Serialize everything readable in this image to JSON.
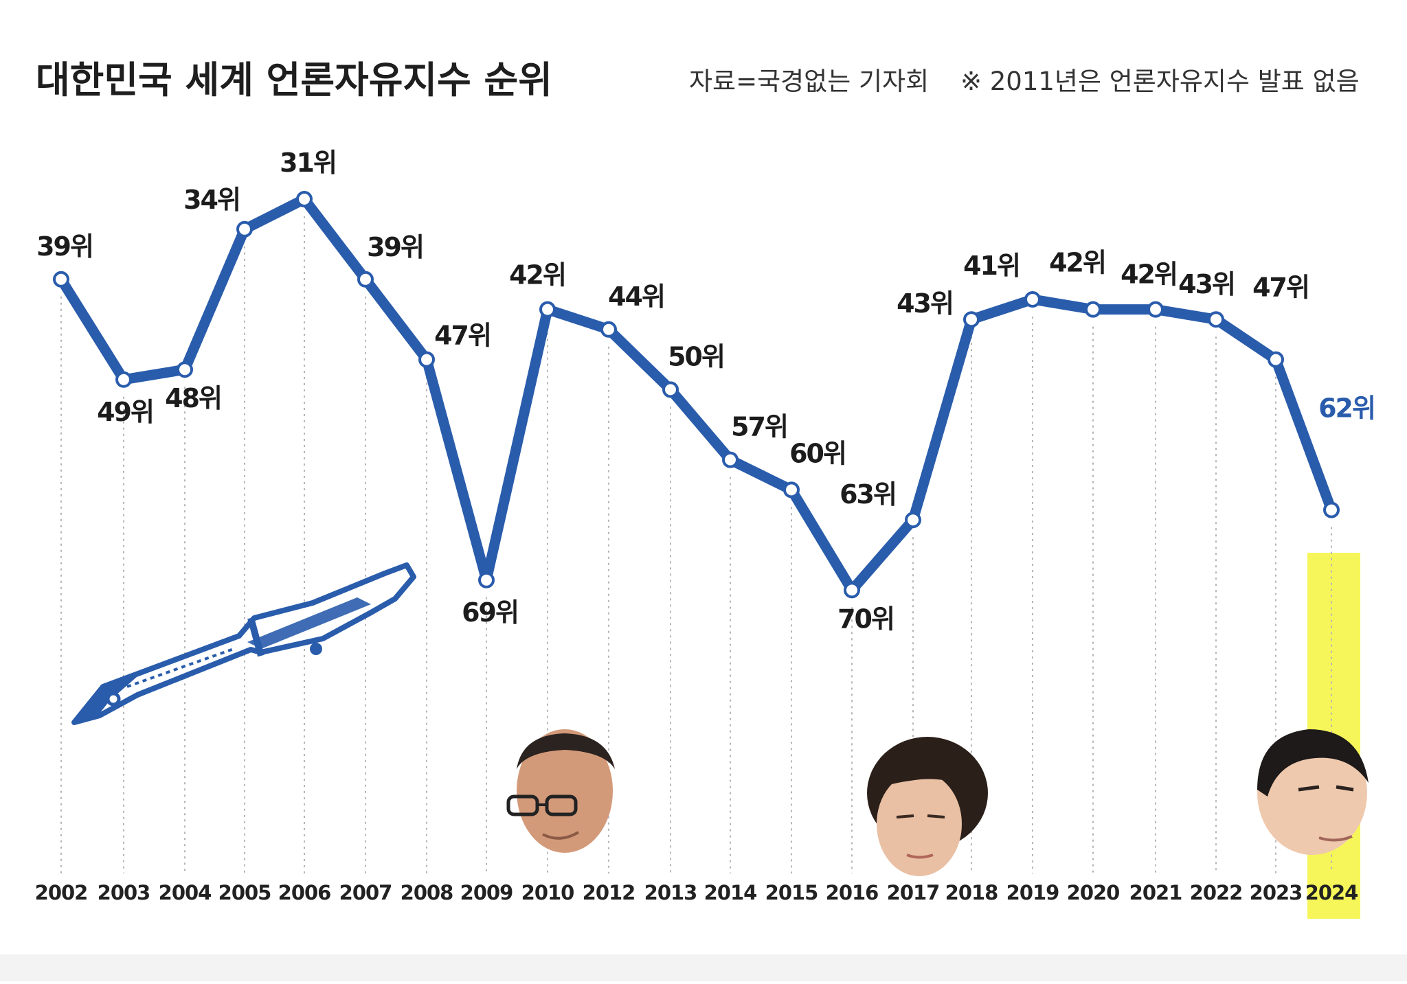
{
  "title": "대한민국 세계 언론자유지수 순위",
  "source_note": "자료=국경없는 기자회",
  "footnote": "※ 2011년은 언론자유지수 발표 없음",
  "colors": {
    "line": "#2a5cac",
    "point_fill": "#ffffff",
    "highlight_band": "#f6f65a",
    "highlight_label": "#2a5cac",
    "text": "#1c1c1c"
  },
  "chart_data": {
    "type": "line",
    "title": "대한민국 세계 언론자유지수 순위",
    "xlabel": "",
    "ylabel": "",
    "y_inverted": true,
    "ylim": [
      75,
      25
    ],
    "grid": "vertical dashed lines at each year",
    "categories": [
      "2002",
      "2003",
      "2004",
      "2005",
      "2006",
      "2007",
      "2008",
      "2009",
      "2010",
      "2012",
      "2013",
      "2014",
      "2015",
      "2016",
      "2017",
      "2018",
      "2019",
      "2020",
      "2021",
      "2022",
      "2023",
      "2024"
    ],
    "values": [
      39,
      49,
      48,
      34,
      31,
      39,
      47,
      69,
      42,
      44,
      50,
      57,
      60,
      70,
      63,
      43,
      41,
      42,
      42,
      43,
      47,
      62
    ],
    "labels": [
      "39위",
      "49위",
      "48위",
      "34위",
      "31위",
      "39위",
      "47위",
      "69위",
      "42위",
      "44위",
      "50위",
      "57위",
      "60위",
      "70위",
      "63위",
      "43위",
      "41위",
      "42위",
      "42위",
      "43위",
      "47위",
      "62위"
    ],
    "highlight_category": "2024"
  },
  "decorations": {
    "knife_icon": "knife-icon",
    "portraits": [
      "portrait-2009-2012",
      "portrait-2016-2017",
      "portrait-2024"
    ]
  }
}
